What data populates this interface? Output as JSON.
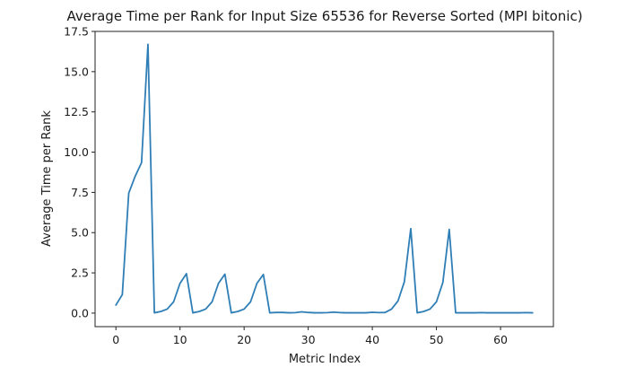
{
  "chart_data": {
    "type": "line",
    "title": "Average Time per Rank for Input Size 65536 for Reverse Sorted (MPI bitonic)",
    "xlabel": "Metric Index",
    "ylabel": "Average Time per Rank",
    "xlim": [
      -3.25,
      68.25
    ],
    "ylim": [
      -0.84,
      17.5
    ],
    "xticks": [
      0,
      10,
      20,
      30,
      40,
      50,
      60
    ],
    "xtick_labels": [
      "0",
      "10",
      "20",
      "30",
      "40",
      "50",
      "60"
    ],
    "yticks": [
      0.0,
      2.5,
      5.0,
      7.5,
      10.0,
      12.5,
      15.0,
      17.5
    ],
    "ytick_labels": [
      "0.0",
      "2.5",
      "5.0",
      "7.5",
      "10.0",
      "12.5",
      "15.0",
      "17.5"
    ],
    "grid": false,
    "legend": "none",
    "series": [
      {
        "color": "#2f7fb6",
        "x": [
          0,
          1,
          2,
          3,
          4,
          5,
          6,
          7,
          8,
          9,
          10,
          11,
          12,
          13,
          14,
          15,
          16,
          17,
          18,
          19,
          20,
          21,
          22,
          23,
          24,
          25,
          26,
          27,
          28,
          29,
          30,
          31,
          32,
          33,
          34,
          35,
          36,
          37,
          38,
          39,
          40,
          41,
          42,
          43,
          44,
          45,
          46,
          47,
          48,
          49,
          50,
          51,
          52,
          53,
          54,
          55,
          56,
          57,
          58,
          59,
          60,
          61,
          62,
          63,
          64,
          65
        ],
        "y": [
          0.5,
          1.15,
          7.45,
          8.5,
          9.35,
          16.7,
          0.02,
          0.1,
          0.25,
          0.7,
          1.85,
          2.45,
          0.02,
          0.1,
          0.25,
          0.7,
          1.85,
          2.42,
          0.02,
          0.1,
          0.25,
          0.7,
          1.85,
          2.4,
          0.02,
          0.04,
          0.04,
          0.02,
          0.03,
          0.08,
          0.04,
          0.02,
          0.02,
          0.03,
          0.06,
          0.03,
          0.02,
          0.02,
          0.02,
          0.02,
          0.05,
          0.03,
          0.04,
          0.25,
          0.75,
          1.95,
          5.25,
          0.02,
          0.1,
          0.25,
          0.7,
          1.9,
          5.2,
          0.02,
          0.02,
          0.02,
          0.02,
          0.03,
          0.02,
          0.02,
          0.02,
          0.02,
          0.02,
          0.02,
          0.03,
          0.02
        ]
      }
    ]
  }
}
